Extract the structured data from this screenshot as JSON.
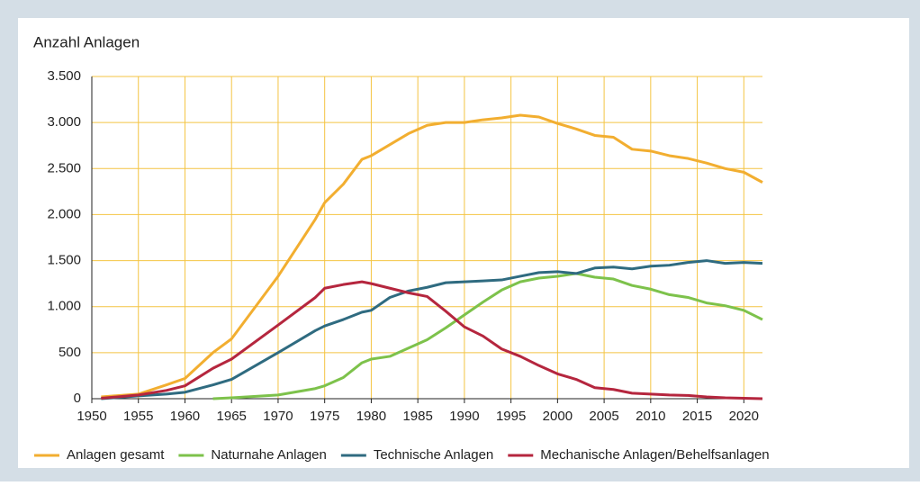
{
  "chart_data": {
    "type": "line",
    "y_label": "Anzahl Anlagen",
    "x": [
      1951,
      1955,
      1958,
      1960,
      1963,
      1965,
      1970,
      1974,
      1975,
      1977,
      1979,
      1980,
      1982,
      1984,
      1986,
      1988,
      1990,
      1992,
      1994,
      1996,
      1998,
      2000,
      2002,
      2004,
      2006,
      2008,
      2010,
      2012,
      2014,
      2016,
      2018,
      2020,
      2022
    ],
    "series": [
      {
        "name": "Anlagen gesamt",
        "color": "#f2ae30",
        "values": [
          20,
          50,
          150,
          220,
          500,
          650,
          1330,
          1950,
          2130,
          2330,
          2600,
          2640,
          2760,
          2880,
          2970,
          3000,
          3000,
          3030,
          3050,
          3080,
          3060,
          2990,
          2930,
          2860,
          2840,
          2710,
          2690,
          2640,
          2610,
          2560,
          2500,
          2460,
          2350
        ]
      },
      {
        "name": "Naturnahe Anlagen",
        "color": "#7dc24b",
        "values": [
          null,
          null,
          null,
          null,
          0,
          10,
          40,
          110,
          140,
          230,
          390,
          430,
          460,
          550,
          640,
          770,
          910,
          1050,
          1180,
          1270,
          1310,
          1330,
          1360,
          1320,
          1300,
          1230,
          1190,
          1130,
          1100,
          1040,
          1010,
          960,
          860
        ]
      },
      {
        "name": "Technische Anlagen",
        "color": "#2f6b80",
        "values": [
          0,
          30,
          50,
          70,
          150,
          210,
          500,
          740,
          790,
          860,
          940,
          960,
          1100,
          1170,
          1210,
          1260,
          1270,
          1280,
          1290,
          1330,
          1370,
          1380,
          1360,
          1420,
          1430,
          1410,
          1440,
          1450,
          1480,
          1500,
          1470,
          1480,
          1470
        ]
      },
      {
        "name": "Mechanische Anlagen/Behelfsanlagen",
        "color": "#b5263e",
        "values": [
          5,
          40,
          90,
          140,
          330,
          430,
          800,
          1100,
          1200,
          1240,
          1270,
          1250,
          1200,
          1150,
          1110,
          950,
          780,
          680,
          540,
          460,
          360,
          270,
          210,
          120,
          100,
          60,
          50,
          40,
          35,
          20,
          10,
          5,
          0
        ]
      }
    ],
    "xlim": [
      1950,
      2022
    ],
    "xticks": [
      1950,
      1955,
      1960,
      1965,
      1970,
      1975,
      1980,
      1985,
      1990,
      1995,
      2000,
      2005,
      2010,
      2015,
      2020
    ],
    "ylim": [
      0,
      3500
    ],
    "yticks": [
      0,
      {
        "value": 500,
        "label": "500"
      },
      {
        "value": 1000,
        "label": "1.000"
      },
      {
        "value": 1500,
        "label": "1.500"
      },
      {
        "value": 2000,
        "label": "2.000"
      },
      {
        "value": 2500,
        "label": "2.500"
      },
      {
        "value": 3000,
        "label": "3.000"
      },
      {
        "value": 3500,
        "label": "3.500"
      }
    ],
    "grid": true,
    "grid_color": "#f4c443",
    "legend": "bottom"
  }
}
